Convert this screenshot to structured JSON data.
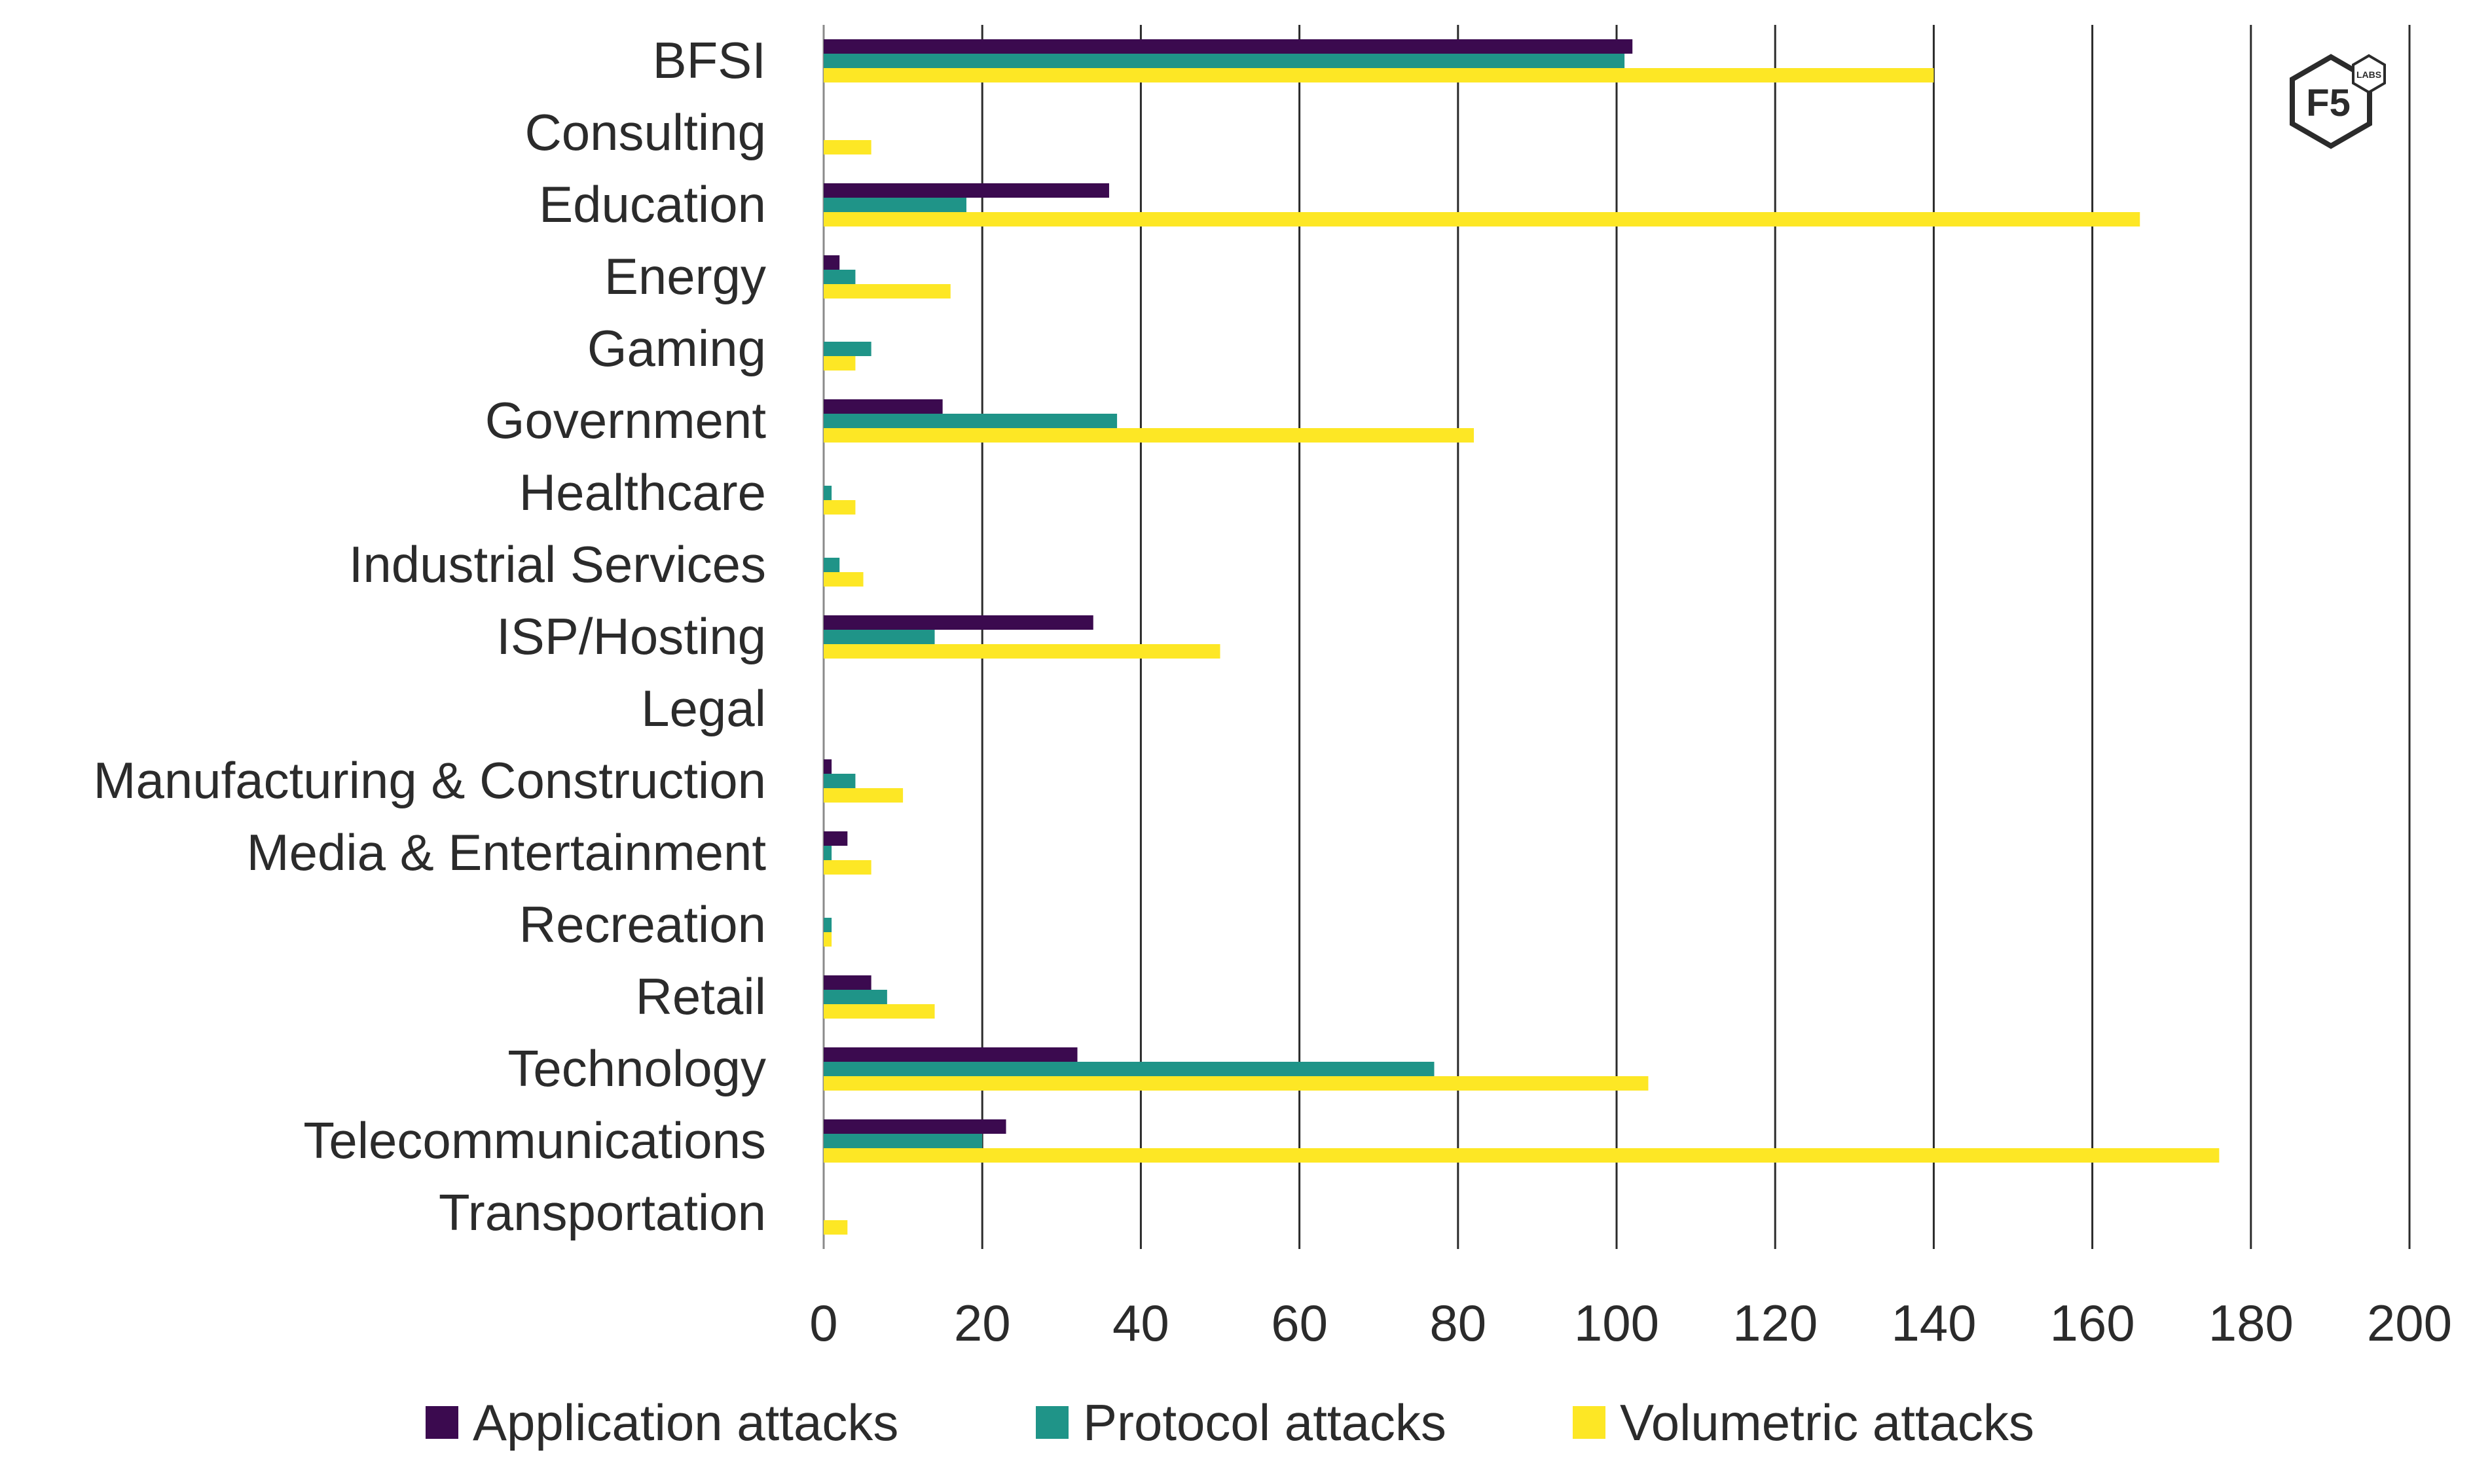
{
  "chart_data": {
    "type": "bar",
    "orientation": "horizontal",
    "categories": [
      "BFSI",
      "Consulting",
      "Education",
      "Energy",
      "Gaming",
      "Government",
      "Healthcare",
      "Industrial Services",
      "ISP/Hosting",
      "Legal",
      "Manufacturing & Construction",
      "Media & Entertainment",
      "Recreation",
      "Retail",
      "Technology",
      "Telecommunications",
      "Transportation"
    ],
    "series": [
      {
        "name": "Application attacks",
        "color": "#3b0a4f",
        "values": [
          102,
          0,
          36,
          2,
          0,
          15,
          0,
          0,
          34,
          0,
          1,
          3,
          0,
          6,
          32,
          23,
          0
        ]
      },
      {
        "name": "Protocol attacks",
        "color": "#1f9488",
        "values": [
          101,
          0,
          18,
          4,
          6,
          37,
          1,
          2,
          14,
          0,
          4,
          1,
          1,
          8,
          77,
          20,
          0
        ]
      },
      {
        "name": "Volumetric attacks",
        "color": "#fde725",
        "values": [
          140,
          6,
          166,
          16,
          4,
          82,
          4,
          5,
          50,
          0,
          10,
          6,
          1,
          14,
          104,
          176,
          3
        ]
      }
    ],
    "xlim": [
      0,
      200
    ],
    "xticks": [
      "0",
      "20",
      "40",
      "60",
      "80",
      "100",
      "120",
      "140",
      "160",
      "180",
      "200"
    ],
    "grid": "vertical",
    "legend_position": "bottom"
  },
  "logo": {
    "icon": "f5-labs-hexagon-logo",
    "text": "F5",
    "subtext": "LABS"
  }
}
